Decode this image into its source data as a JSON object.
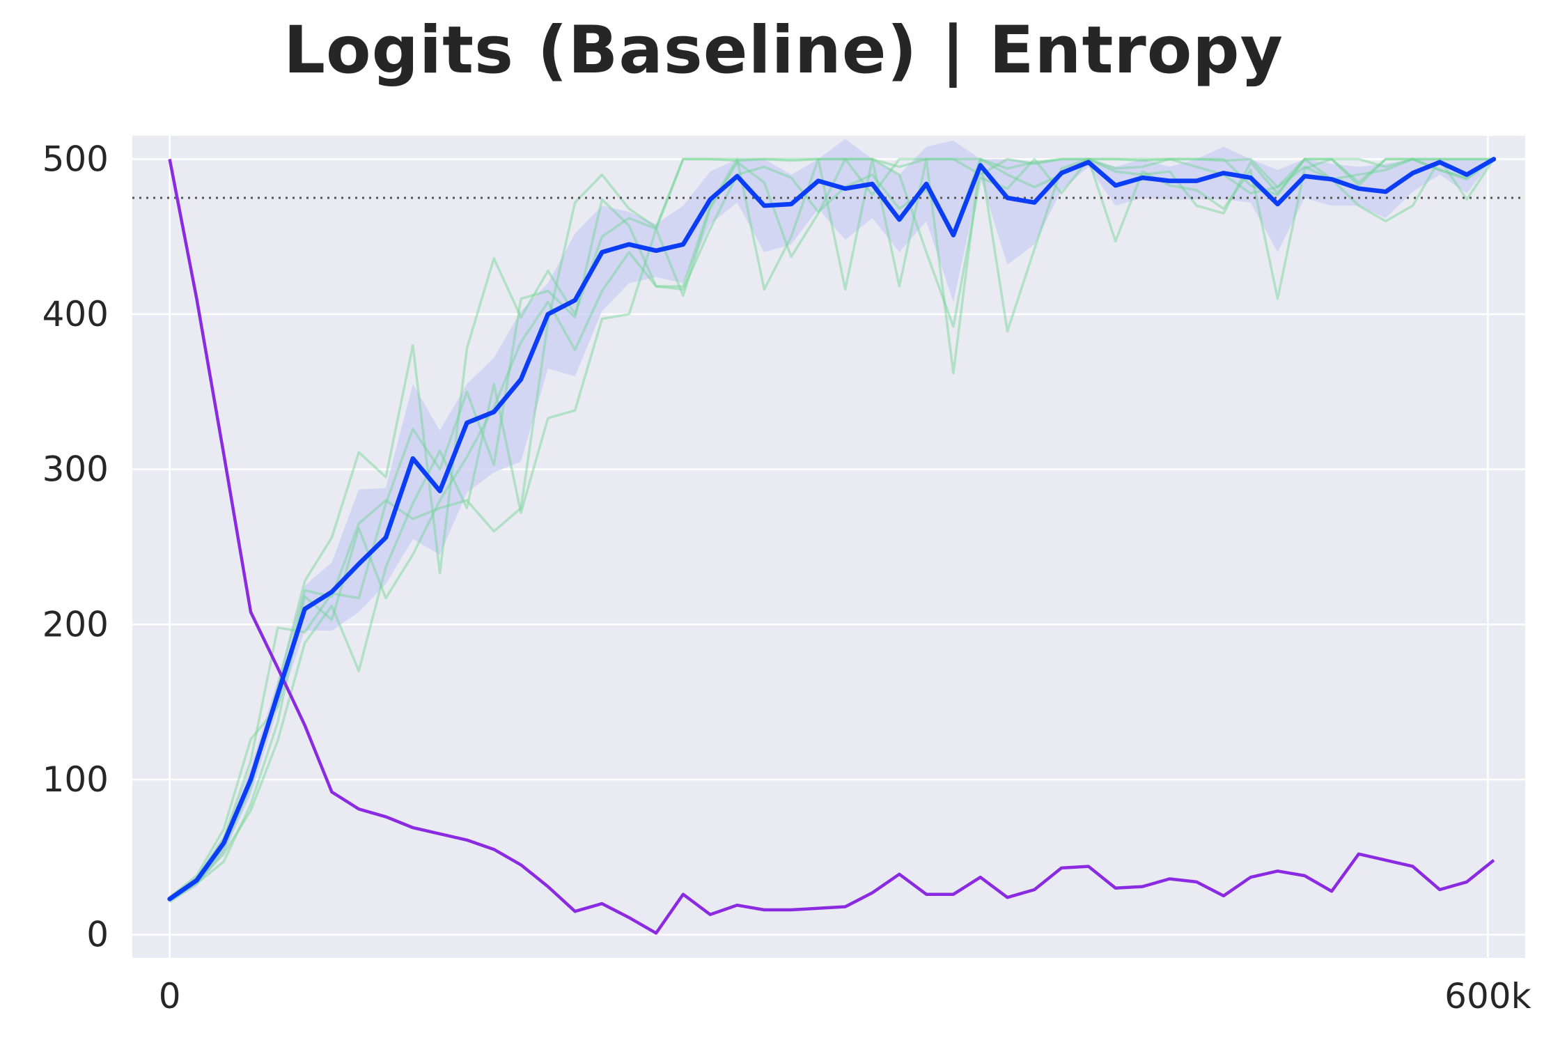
{
  "chart_data": {
    "type": "line",
    "title": "Logits (Baseline) | Entropy",
    "xlabel": "",
    "ylabel": "",
    "xlim": [
      -17000,
      617000
    ],
    "ylim": [
      -15,
      515
    ],
    "x_ticks": [
      {
        "value": 0,
        "label": "0"
      },
      {
        "value": 600000,
        "label": "600k"
      }
    ],
    "y_ticks": [
      {
        "value": 0,
        "label": "0"
      },
      {
        "value": 100,
        "label": "100"
      },
      {
        "value": 200,
        "label": "200"
      },
      {
        "value": 300,
        "label": "300"
      },
      {
        "value": 400,
        "label": "400"
      },
      {
        "value": 500,
        "label": "500"
      }
    ],
    "grid": true,
    "reference_line": {
      "y": 475,
      "style": "dotted"
    },
    "colors": {
      "background": "#eaeaf2",
      "grid": "#ffffff",
      "mean_line": "#0a3df5",
      "band": "#c9cff3",
      "runs": "#6cd490",
      "entropy": "#8a2be2",
      "reference": "#555555"
    },
    "x": [
      0,
      12300,
      24600,
      36900,
      49200,
      61500,
      73800,
      86100,
      98400,
      110700,
      123000,
      135300,
      147600,
      159900,
      172200,
      184500,
      196800,
      209100,
      221400,
      233700,
      246000,
      258300,
      270600,
      282900,
      295200,
      307500,
      319800,
      332100,
      344400,
      356700,
      369000,
      381300,
      393600,
      405900,
      418200,
      430500,
      442800,
      455100,
      467400,
      479700,
      492000,
      504300,
      516600,
      528900,
      541200,
      553500,
      565800,
      578100,
      590400,
      602700
    ],
    "series": [
      {
        "role": "mean",
        "values": [
          23,
          35,
          59,
          100,
          155,
          210,
          221,
          239,
          256,
          307,
          286,
          330,
          337,
          358,
          400,
          409,
          440,
          445,
          441,
          445,
          474,
          489,
          470,
          471,
          486,
          481,
          484,
          461,
          484,
          451,
          496,
          475,
          472,
          491,
          498,
          483,
          488,
          486,
          486,
          491,
          488,
          471,
          489,
          487,
          481,
          479,
          491,
          498,
          490,
          500
        ]
      },
      {
        "role": "band_upper",
        "values": [
          25,
          38,
          64,
          108,
          164,
          225,
          240,
          287,
          288,
          355,
          325,
          355,
          372,
          402,
          420,
          452,
          470,
          466,
          458,
          470,
          492,
          500,
          500,
          490,
          500,
          513,
          500,
          490,
          508,
          512,
          500,
          500,
          498,
          500,
          500,
          495,
          500,
          495,
          500,
          508,
          500,
          493,
          500,
          497,
          495,
          497,
          500,
          500,
          500,
          500
        ]
      },
      {
        "role": "band_lower",
        "values": [
          21,
          31,
          52,
          90,
          145,
          196,
          196,
          208,
          226,
          255,
          245,
          285,
          298,
          305,
          365,
          360,
          402,
          420,
          424,
          420,
          458,
          472,
          440,
          445,
          468,
          448,
          462,
          440,
          460,
          408,
          488,
          432,
          445,
          480,
          495,
          470,
          475,
          474,
          474,
          474,
          472,
          440,
          475,
          470,
          470,
          462,
          479,
          490,
          478,
          500
        ]
      },
      {
        "role": "run",
        "values": [
          22,
          33,
          55,
          95,
          160,
          228,
          256,
          311,
          295,
          380,
          233,
          378,
          436,
          398,
          428,
          400,
          450,
          462,
          455,
          500,
          500,
          500,
          500,
          500,
          500,
          500,
          500,
          495,
          500,
          500,
          500,
          494,
          498,
          500,
          500,
          500,
          499,
          500,
          500,
          499,
          500,
          482,
          500,
          500,
          500,
          495,
          500,
          500,
          500,
          500
        ]
      },
      {
        "role": "run",
        "values": [
          23,
          36,
          62,
          112,
          198,
          195,
          220,
          217,
          278,
          326,
          300,
          350,
          303,
          410,
          415,
          398,
          474,
          457,
          418,
          418,
          470,
          500,
          416,
          450,
          500,
          416,
          500,
          418,
          500,
          362,
          500,
          389,
          442,
          494,
          500,
          447,
          492,
          483,
          480,
          468,
          493,
          410,
          494,
          500,
          485,
          500,
          500,
          493,
          488,
          500
        ]
      },
      {
        "role": "run",
        "values": [
          22,
          34,
          52,
          80,
          125,
          188,
          212,
          170,
          237,
          278,
          312,
          275,
          355,
          272,
          333,
          338,
          397,
          400,
          455,
          412,
          468,
          498,
          485,
          437,
          465,
          500,
          500,
          490,
          440,
          392,
          488,
          481,
          500,
          478,
          500,
          492,
          490,
          492,
          470,
          465,
          498,
          478,
          500,
          487,
          470,
          460,
          470,
          500,
          474,
          500
        ]
      },
      {
        "role": "run",
        "values": [
          24,
          38,
          68,
          126,
          147,
          222,
          218,
          265,
          280,
          268,
          275,
          280,
          260,
          275,
          395,
          472,
          490,
          468,
          456,
          500,
          500,
          499,
          500,
          499,
          500,
          500,
          477,
          500,
          500,
          500,
          490,
          500,
          497,
          500,
          500,
          500,
          500,
          500,
          500,
          500,
          483,
          477,
          500,
          500,
          483,
          500,
          500,
          500,
          500,
          500
        ]
      },
      {
        "role": "run",
        "values": [
          21,
          33,
          47,
          84,
          137,
          218,
          203,
          262,
          217,
          245,
          280,
          308,
          340,
          382,
          408,
          377,
          415,
          440,
          418,
          416,
          455,
          490,
          495,
          488,
          466,
          482,
          490,
          468,
          480,
          453,
          500,
          490,
          482,
          490,
          500,
          494,
          495,
          500,
          495,
          490,
          478,
          482,
          495,
          487,
          490,
          493,
          500,
          493,
          487,
          500
        ]
      },
      {
        "role": "entropy",
        "values": [
          500,
          410,
          310,
          208,
          172,
          135,
          92,
          81,
          76,
          69,
          65,
          61,
          55,
          45,
          31,
          15,
          20,
          11,
          1,
          26,
          13,
          19,
          16,
          16,
          17,
          18,
          27,
          39,
          26,
          26,
          37,
          24,
          29,
          43,
          44,
          30,
          31,
          36,
          34,
          25,
          37,
          41,
          38,
          28,
          52,
          48,
          44,
          29,
          34,
          48
        ]
      }
    ]
  }
}
